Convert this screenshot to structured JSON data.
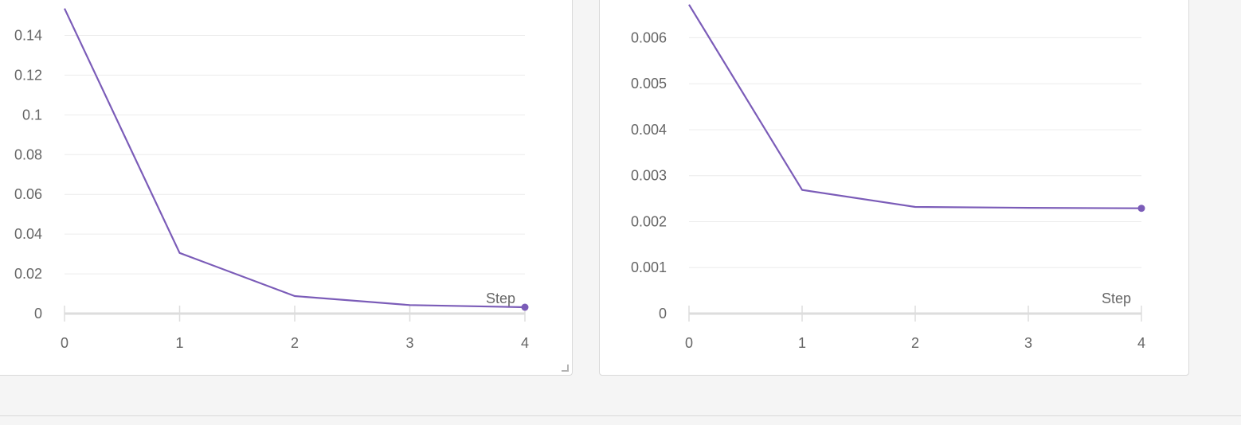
{
  "charts": [
    {
      "panel": "left",
      "chart_data": {
        "type": "line",
        "xlabel": "Step",
        "ylabel": "",
        "x": [
          0,
          1,
          2,
          3,
          4
        ],
        "xlim": [
          0,
          4
        ],
        "ylim": [
          0,
          0.155
        ],
        "xticks": [
          "0",
          "1",
          "2",
          "3",
          "4"
        ],
        "yticks": [
          {
            "value": 0,
            "label": "0"
          },
          {
            "value": 0.02,
            "label": "0.02"
          },
          {
            "value": 0.04,
            "label": "0.04"
          },
          {
            "value": 0.06,
            "label": "0.06"
          },
          {
            "value": 0.08,
            "label": "0.08"
          },
          {
            "value": 0.1,
            "label": "0.1"
          },
          {
            "value": 0.12,
            "label": "0.12"
          },
          {
            "value": 0.14,
            "label": "0.14"
          }
        ],
        "grid": true,
        "series": [
          {
            "values": [
              0.1535,
              0.0305,
              0.0088,
              0.0043,
              0.0032
            ]
          }
        ]
      }
    },
    {
      "panel": "right",
      "chart_data": {
        "type": "line",
        "xlabel": "Step",
        "ylabel": "",
        "x": [
          0,
          1,
          2,
          3,
          4
        ],
        "xlim": [
          0,
          4
        ],
        "ylim": [
          0,
          0.0067
        ],
        "xticks": [
          "0",
          "1",
          "2",
          "3",
          "4"
        ],
        "yticks": [
          {
            "value": 0,
            "label": "0"
          },
          {
            "value": 0.001,
            "label": "0.001"
          },
          {
            "value": 0.002,
            "label": "0.002"
          },
          {
            "value": 0.003,
            "label": "0.003"
          },
          {
            "value": 0.004,
            "label": "0.004"
          },
          {
            "value": 0.005,
            "label": "0.005"
          },
          {
            "value": 0.006,
            "label": "0.006"
          }
        ],
        "grid": true,
        "series": [
          {
            "values": [
              0.00672,
              0.00269,
              0.00232,
              0.0023,
              0.00229
            ]
          }
        ]
      }
    }
  ],
  "colors": {
    "line": "#7b5cb8",
    "grid": "#ececec",
    "axis": "#dddddd",
    "tick_label": "#666666",
    "panel_border": "#d9d9d9",
    "background": "#f5f5f5"
  }
}
